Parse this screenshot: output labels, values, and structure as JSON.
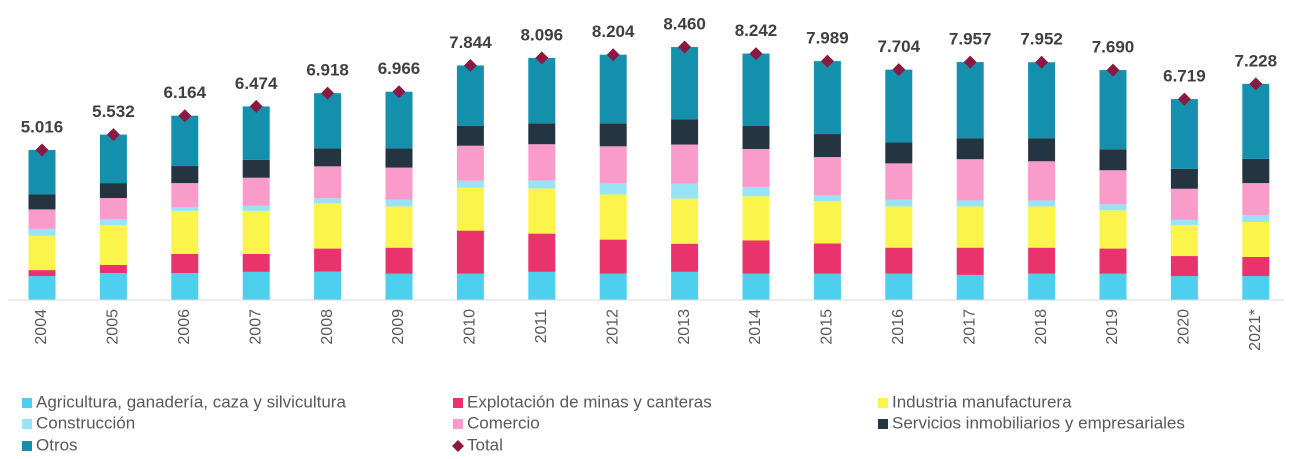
{
  "chart_data": {
    "type": "stacked-bar",
    "categories": [
      "2004",
      "2005",
      "2006",
      "2007",
      "2008",
      "2009",
      "2010",
      "2011",
      "2012",
      "2013",
      "2014",
      "2015",
      "2016",
      "2017",
      "2018",
      "2019",
      "2020",
      "2021*"
    ],
    "series": [
      {
        "name": "Agricultura, ganadería, caza y silvicultura",
        "color": "#4dcfee",
        "values": [
          0.8,
          0.9,
          0.9,
          0.94,
          0.95,
          0.88,
          0.88,
          0.94,
          0.88,
          0.94,
          0.88,
          0.88,
          0.88,
          0.84,
          0.88,
          0.88,
          0.8,
          0.8
        ]
      },
      {
        "name": "Explotación de minas y canteras",
        "color": "#e8336d",
        "values": [
          0.2,
          0.27,
          0.64,
          0.6,
          0.77,
          0.87,
          1.44,
          1.28,
          1.14,
          0.94,
          1.11,
          1.01,
          0.87,
          0.91,
          0.87,
          0.84,
          0.67,
          0.64
        ]
      },
      {
        "name": "Industria manufacturera",
        "color": "#fbf44a",
        "values": [
          1.15,
          1.34,
          1.44,
          1.44,
          1.51,
          1.38,
          1.44,
          1.51,
          1.51,
          1.51,
          1.48,
          1.41,
          1.38,
          1.38,
          1.38,
          1.28,
          1.04,
          1.17
        ]
      },
      {
        "name": "Construcción",
        "color": "#99e3f7",
        "values": [
          0.23,
          0.2,
          0.13,
          0.17,
          0.17,
          0.23,
          0.23,
          0.27,
          0.37,
          0.5,
          0.3,
          0.2,
          0.23,
          0.2,
          0.2,
          0.2,
          0.17,
          0.23
        ]
      },
      {
        "name": "Comercio",
        "color": "#f99cc9",
        "values": [
          0.65,
          0.7,
          0.8,
          0.94,
          1.07,
          1.07,
          1.17,
          1.21,
          1.24,
          1.31,
          1.28,
          1.28,
          1.21,
          1.38,
          1.31,
          1.14,
          1.04,
          1.07
        ]
      },
      {
        "name": "Servicios inmobiliarios y empresariales",
        "color": "#243440",
        "values": [
          0.5,
          0.5,
          0.57,
          0.6,
          0.6,
          0.64,
          0.67,
          0.7,
          0.77,
          0.84,
          0.77,
          0.77,
          0.7,
          0.7,
          0.77,
          0.7,
          0.67,
          0.81
        ]
      },
      {
        "name": "Otros",
        "color": "#1490ad",
        "values": [
          1.486,
          1.622,
          1.684,
          1.784,
          1.848,
          1.896,
          2.014,
          2.186,
          2.294,
          2.42,
          2.422,
          2.439,
          2.434,
          2.547,
          2.542,
          2.65,
          2.329,
          2.508
        ]
      }
    ],
    "total": {
      "name": "Total",
      "color": "#8b1a43",
      "values": [
        5.016,
        5.532,
        6.164,
        6.474,
        6.918,
        6.966,
        7.844,
        8.096,
        8.204,
        8.46,
        8.242,
        7.989,
        7.704,
        7.957,
        7.952,
        7.69,
        6.719,
        7.228
      ],
      "value_labels": [
        "5.016",
        "5.532",
        "6.164",
        "6.474",
        "6.918",
        "6.966",
        "7.844",
        "8.096",
        "8.204",
        "8.460",
        "8.242",
        "7.989",
        "7.704",
        "7.957",
        "7.952",
        "7.690",
        "6.719",
        "7.228"
      ]
    }
  }
}
